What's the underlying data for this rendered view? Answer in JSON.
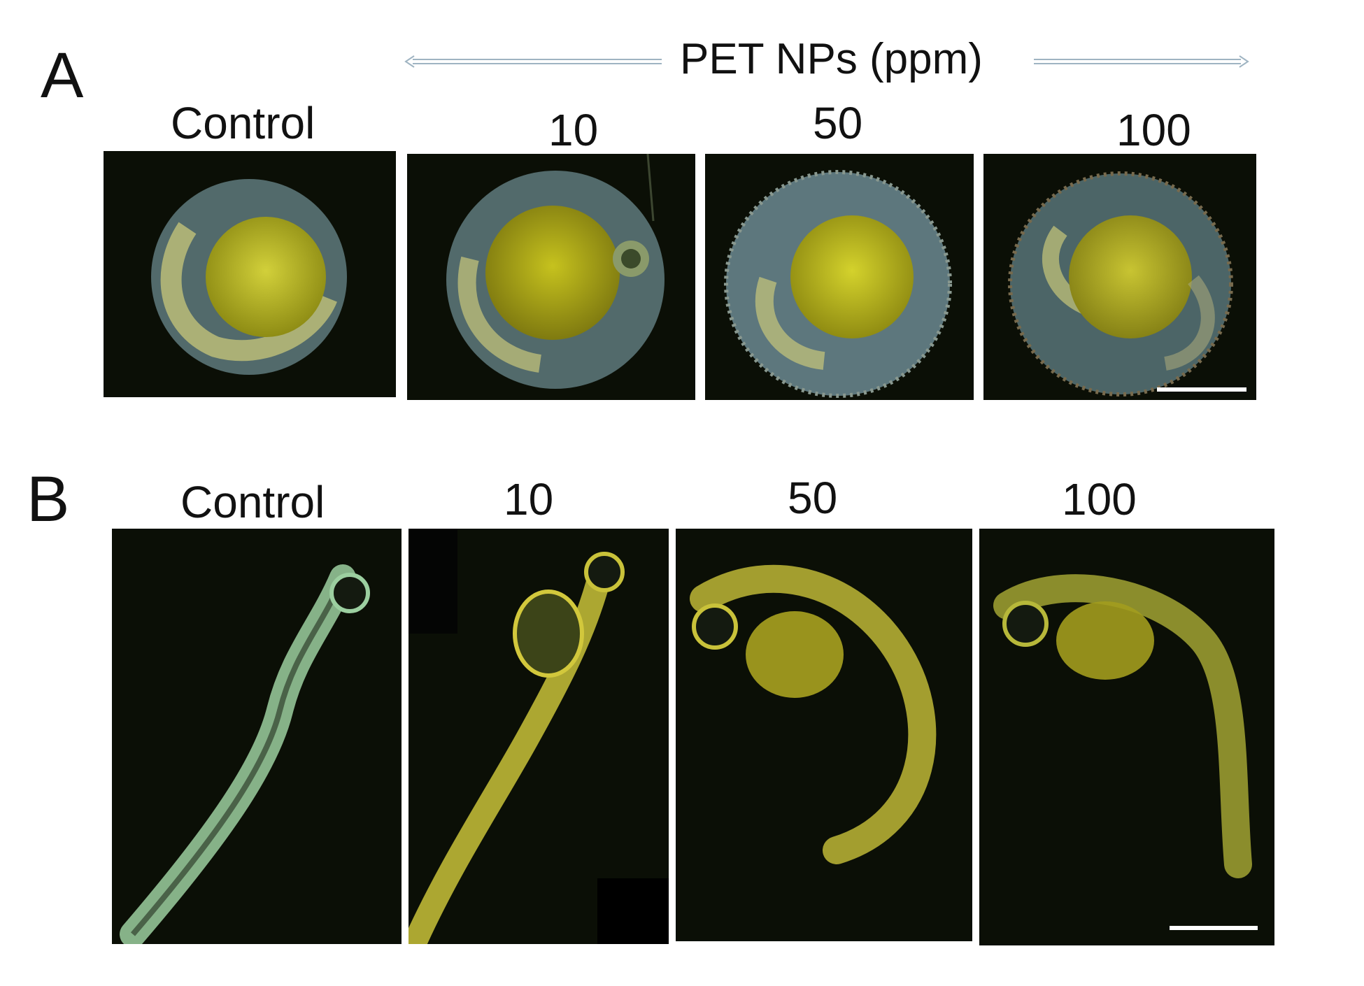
{
  "header": {
    "label": "PET NPs (ppm)"
  },
  "panels": [
    {
      "letter": "A",
      "tiles": [
        {
          "label": "Control",
          "stage": "embryo"
        },
        {
          "label": "10",
          "stage": "embryo"
        },
        {
          "label": "50",
          "stage": "embryo"
        },
        {
          "label": "100",
          "stage": "embryo"
        }
      ]
    },
    {
      "letter": "B",
      "tiles": [
        {
          "label": "Control",
          "stage": "larva"
        },
        {
          "label": "10",
          "stage": "larva"
        },
        {
          "label": "50",
          "stage": "larva"
        },
        {
          "label": "100",
          "stage": "larva"
        }
      ]
    }
  ],
  "colors": {
    "background": "#0b0f06",
    "yolk": "#b4b21e",
    "chorion": "#5f7a7e",
    "larva_control": "#9ccfa0",
    "larva_treated": "#c9c23a",
    "scalebar": "#ffffff",
    "arrow": "#9fb4c2"
  }
}
